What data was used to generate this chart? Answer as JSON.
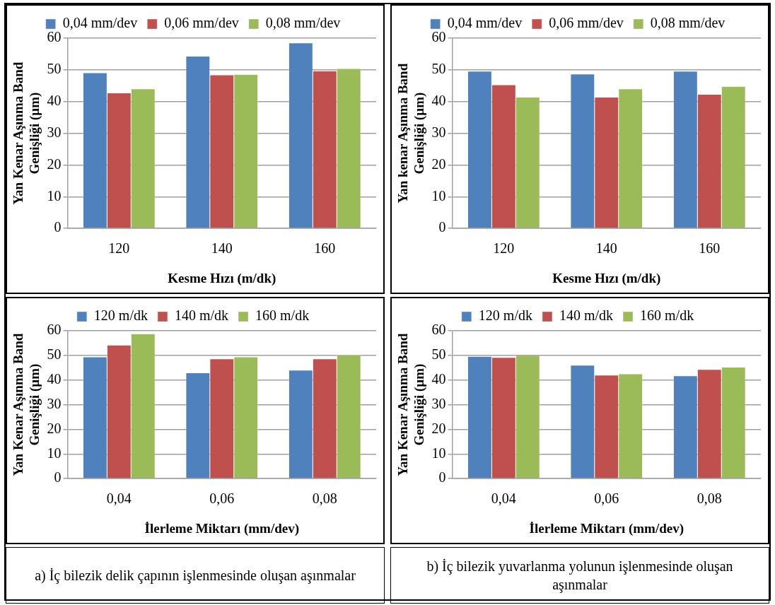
{
  "chart_data": [
    {
      "type": "bar",
      "xlabel": "Kesme Hızı (m/dk)",
      "ylabel": "Yan Kenar Aşınma Band Genişliği (µm)",
      "categories": [
        "120",
        "140",
        "160"
      ],
      "ylim": [
        0,
        60
      ],
      "yticks": [
        0,
        10,
        20,
        30,
        40,
        50,
        60
      ],
      "grid": "y",
      "legend": "top",
      "series": [
        {
          "name": "0,04 mm/dev",
          "color": "#4f81bd",
          "values": [
            49.1,
            54.3,
            58.5
          ]
        },
        {
          "name": "0,06 mm/dev",
          "color": "#c0504d",
          "values": [
            42.7,
            48.4,
            49.7
          ]
        },
        {
          "name": "0,08 mm/dev",
          "color": "#9bbb59",
          "values": [
            44.0,
            48.6,
            50.4
          ]
        }
      ]
    },
    {
      "type": "bar",
      "xlabel": "Kesme Hızı (m/dk)",
      "ylabel": "Yan kenar Aşınma Band Genişliği (µm)",
      "categories": [
        "120",
        "140",
        "160"
      ],
      "ylim": [
        0,
        60
      ],
      "yticks": [
        0,
        10,
        20,
        30,
        40,
        50,
        60
      ],
      "grid": "y",
      "legend": "top",
      "series": [
        {
          "name": "0,04 mm/dev",
          "color": "#4f81bd",
          "values": [
            49.6,
            48.7,
            49.6
          ]
        },
        {
          "name": "0,06 mm/dev",
          "color": "#c0504d",
          "values": [
            45.3,
            41.4,
            42.3
          ]
        },
        {
          "name": "0,08 mm/dev",
          "color": "#9bbb59",
          "values": [
            41.4,
            44.0,
            44.8
          ]
        }
      ]
    },
    {
      "type": "bar",
      "xlabel": "İlerleme Miktarı (mm/dev)",
      "ylabel": "Yan Kenar Aşınma Band Genişliği (µm)",
      "categories": [
        "0,04",
        "0,06",
        "0,08"
      ],
      "ylim": [
        0,
        60
      ],
      "yticks": [
        0,
        10,
        20,
        30,
        40,
        50,
        60
      ],
      "grid": "y",
      "legend": "top",
      "annotations": [
        "a) İç bilezik delik çapının işlenmesinde oluşan aşınmalar"
      ],
      "series": [
        {
          "name": "120 m/dk",
          "color": "#4f81bd",
          "values": [
            49.4,
            42.9,
            44.0
          ]
        },
        {
          "name": "140 m/dk",
          "color": "#c0504d",
          "values": [
            54.2,
            48.6,
            48.6
          ]
        },
        {
          "name": "160 m/dk",
          "color": "#9bbb59",
          "values": [
            58.8,
            49.4,
            50.2
          ]
        }
      ]
    },
    {
      "type": "bar",
      "xlabel": "İlerleme Miktarı (mm/dev)",
      "ylabel": "Yan Kenar Aşınma Band Genişliği (µm)",
      "categories": [
        "0,04",
        "0,06",
        "0,08"
      ],
      "ylim": [
        0,
        60
      ],
      "yticks": [
        0,
        10,
        20,
        30,
        40,
        50,
        60
      ],
      "grid": "y",
      "legend": "top",
      "annotations": [
        "b) İç bilezik yuvarlanma yolunun işlenmesinde oluşan aşınmalar"
      ],
      "series": [
        {
          "name": "120 m/dk",
          "color": "#4f81bd",
          "values": [
            49.6,
            46.0,
            41.7
          ]
        },
        {
          "name": "140 m/dk",
          "color": "#c0504d",
          "values": [
            49.2,
            42.0,
            44.3
          ]
        },
        {
          "name": "160 m/dk",
          "color": "#9bbb59",
          "values": [
            50.0,
            42.5,
            45.2
          ]
        }
      ]
    }
  ]
}
